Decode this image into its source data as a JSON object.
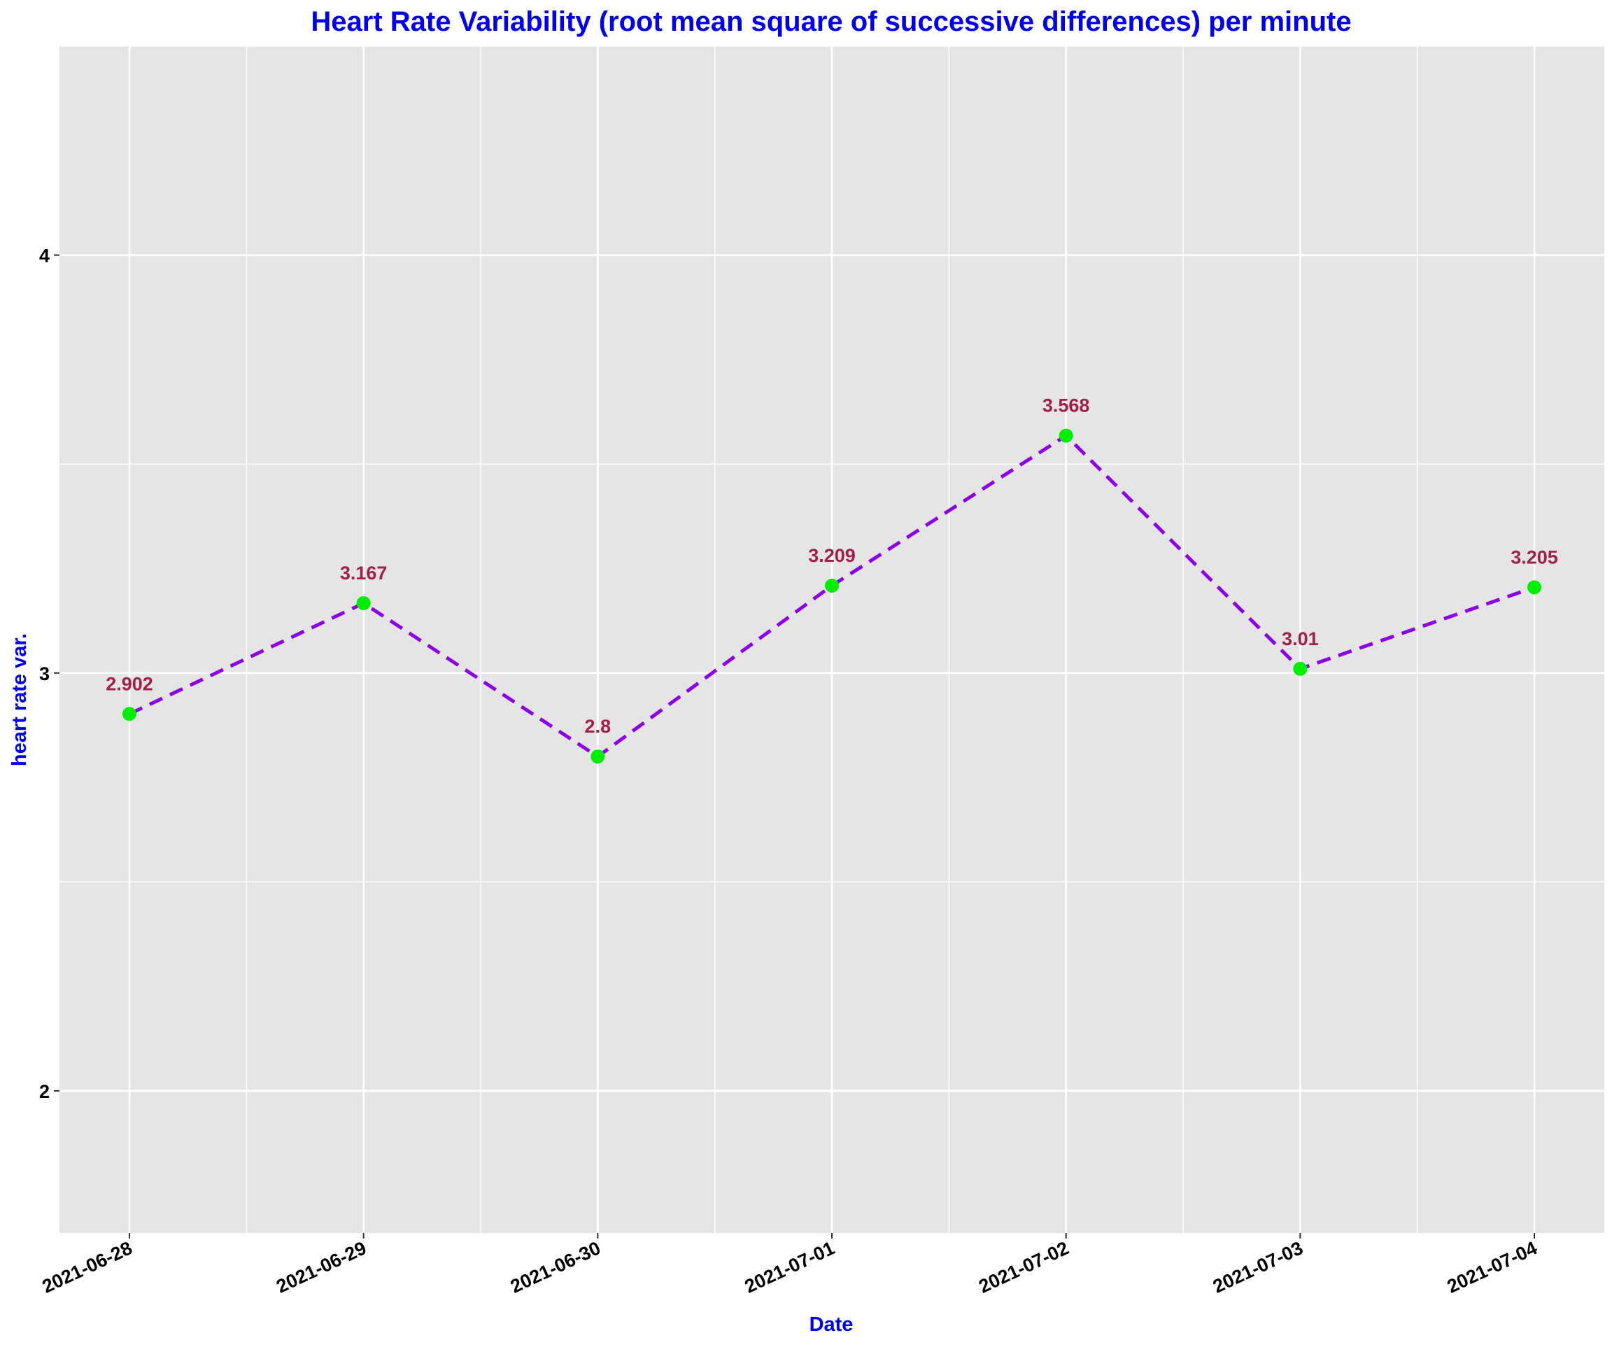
{
  "chart_data": {
    "type": "line",
    "title": "Heart Rate Variability (root mean square of successive differences) per minute",
    "xlabel": "Date",
    "ylabel": "heart rate var.",
    "x": [
      "2021-06-28",
      "2021-06-29",
      "2021-06-30",
      "2021-07-01",
      "2021-07-02",
      "2021-07-03",
      "2021-07-04"
    ],
    "series": [
      {
        "values": [
          2.902,
          3.167,
          2.8,
          3.209,
          3.568,
          3.01,
          3.205
        ],
        "labels": [
          "2.902",
          "3.167",
          "2.8",
          "3.209",
          "3.568",
          "3.01",
          "3.205"
        ]
      }
    ],
    "y_ticks": [
      2,
      3,
      4
    ],
    "y_tick_labels": [
      "2",
      "3",
      "4"
    ],
    "ylim": [
      1.66,
      4.5
    ],
    "grid": true,
    "legend": "none",
    "colors": {
      "title": "#0000ee",
      "axis_title": "#0000ee",
      "line": "#8b00e6",
      "point": "#00ee00",
      "data_label": "#a0204a",
      "panel_background": "#e5e5e5",
      "grid": "#ffffff"
    }
  }
}
